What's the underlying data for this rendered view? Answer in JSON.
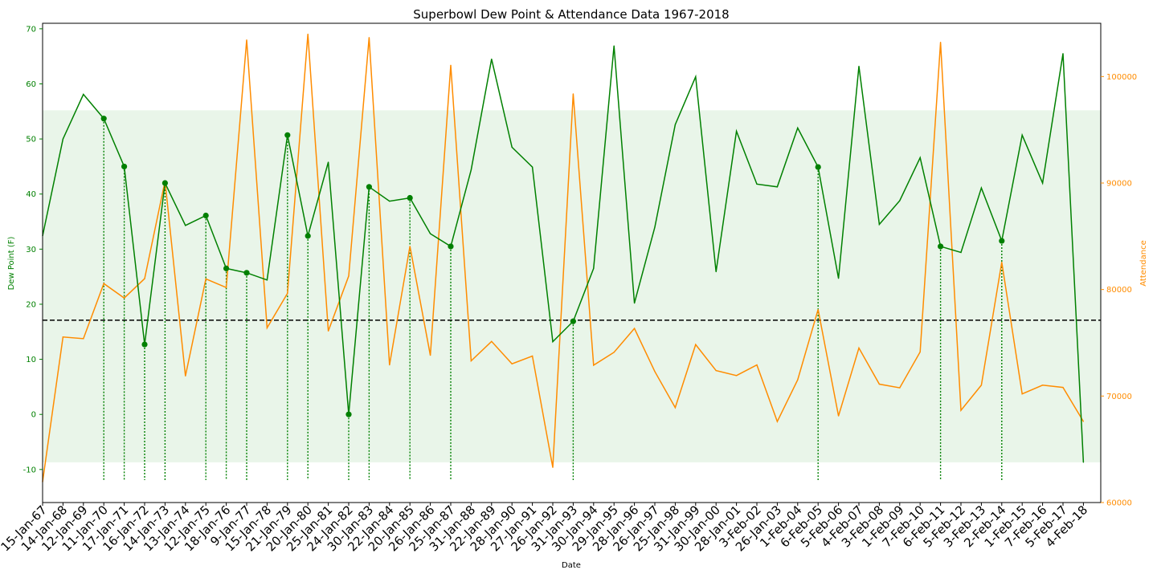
{
  "chart_data": {
    "type": "line",
    "title": "Superbowl Dew Point & Attendance Data 1967-2018",
    "xlabel": "Date",
    "ylabel_left": "Dew Point (F)",
    "ylabel_right": "Attendance",
    "ylim_left": [
      -16,
      71
    ],
    "ylim_right": [
      60000,
      105000
    ],
    "yticks_left": [
      -10,
      0,
      10,
      20,
      30,
      40,
      50,
      60,
      70
    ],
    "yticks_right": [
      60000,
      70000,
      80000,
      90000,
      100000
    ],
    "band_left": [
      -8.7,
      55.2
    ],
    "reference_line_left": 17.1,
    "colors": {
      "dew_point": "#008000",
      "attendance": "#ff8c00",
      "band": "#e9f5e9",
      "reference_line": "#000000"
    },
    "categories": [
      "15-Jan-67",
      "14-Jan-68",
      "12-Jan-69",
      "11-Jan-70",
      "17-Jan-71",
      "16-Jan-72",
      "14-Jan-73",
      "13-Jan-74",
      "12-Jan-75",
      "18-Jan-76",
      "9-Jan-77",
      "15-Jan-78",
      "21-Jan-79",
      "20-Jan-80",
      "25-Jan-81",
      "24-Jan-82",
      "30-Jan-83",
      "22-Jan-84",
      "20-Jan-85",
      "26-Jan-86",
      "25-Jan-87",
      "31-Jan-88",
      "22-Jan-89",
      "28-Jan-90",
      "27-Jan-91",
      "26-Jan-92",
      "31-Jan-93",
      "30-Jan-94",
      "29-Jan-95",
      "28-Jan-96",
      "26-Jan-97",
      "25-Jan-98",
      "31-Jan-99",
      "30-Jan-00",
      "28-Jan-01",
      "3-Feb-02",
      "26-Jan-03",
      "1-Feb-04",
      "6-Feb-05",
      "5-Feb-06",
      "4-Feb-07",
      "3-Feb-08",
      "1-Feb-09",
      "7-Feb-10",
      "6-Feb-11",
      "5-Feb-12",
      "3-Feb-13",
      "2-Feb-14",
      "1-Feb-15",
      "7-Feb-16",
      "5-Feb-17",
      "4-Feb-18"
    ],
    "series": [
      {
        "name": "Dew Point (F)",
        "axis": "left",
        "values": [
          32.4,
          50,
          58.1,
          53.7,
          45,
          12.7,
          42,
          34.3,
          36.1,
          26.5,
          25.7,
          24.4,
          50.7,
          32.4,
          45.8,
          0,
          41.3,
          38.7,
          39.3,
          32.8,
          30.5,
          44.4,
          64.5,
          48.5,
          44.9,
          13.2,
          16.9,
          26.5,
          66.9,
          20.2,
          34,
          52.6,
          61.3,
          25.9,
          51.4,
          41.8,
          41.3,
          52,
          44.9,
          24.7,
          63.2,
          34.5,
          38.8,
          46.6,
          30.5,
          29.4,
          41.1,
          31.5,
          50.7,
          42,
          65.5,
          -8.7
        ],
        "markers": [
          0,
          0,
          0,
          1,
          1,
          1,
          1,
          0,
          1,
          1,
          1,
          0,
          1,
          1,
          0,
          1,
          1,
          0,
          1,
          0,
          1,
          0,
          0,
          0,
          0,
          0,
          1,
          0,
          0,
          0,
          0,
          0,
          0,
          0,
          0,
          0,
          0,
          0,
          1,
          0,
          0,
          0,
          0,
          0,
          1,
          0,
          0,
          1,
          0,
          0,
          0,
          0
        ]
      },
      {
        "name": "Attendance",
        "axis": "right",
        "values": [
          61946,
          75546,
          75389,
          80562,
          79204,
          81023,
          90182,
          71882,
          80997,
          80187,
          103438,
          76400,
          79641,
          103985,
          76104,
          81270,
          103667,
          72920,
          84059,
          73818,
          101063,
          73302,
          75129,
          73024,
          73757,
          63300,
          98374,
          72894,
          74107,
          76347,
          72301,
          68912,
          74830,
          72390,
          71921,
          72922,
          67603,
          71525,
          78125,
          68130,
          74512,
          71116,
          70774,
          74144,
          103219,
          68658,
          71024,
          82566,
          70200,
          71021,
          70807,
          67612
        ]
      }
    ]
  }
}
